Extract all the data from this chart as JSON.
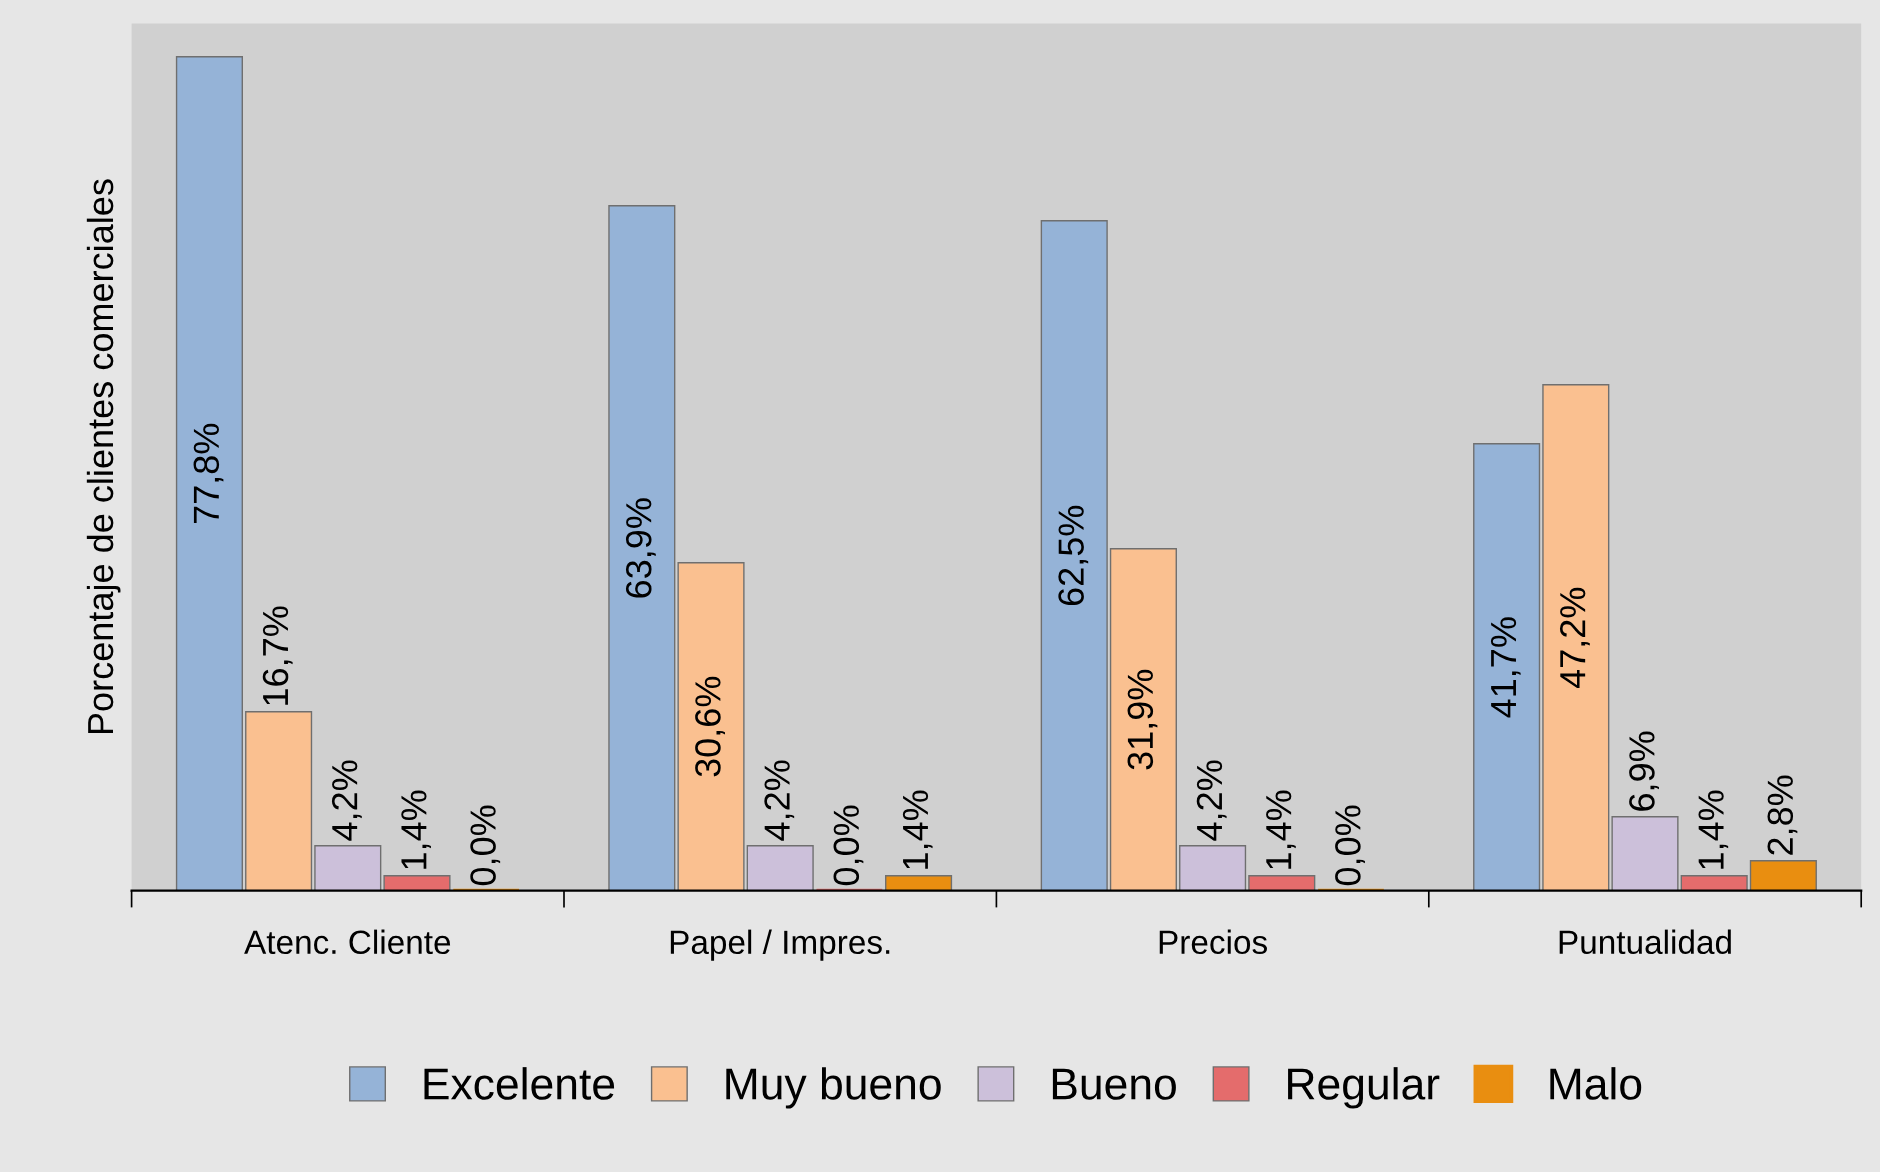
{
  "chart_data": {
    "type": "bar",
    "ylabel": "Porcentaje de clientes comerciales",
    "categories": [
      "Atenc. Cliente",
      "Papel / Impres.",
      "Precios",
      "Puntualidad"
    ],
    "series": [
      {
        "name": "Excelente",
        "color": "#95b3d7",
        "values": [
          77.8,
          63.9,
          62.5,
          41.7
        ],
        "value_labels": [
          "77,8%",
          "63,9%",
          "62,5%",
          "41,7%"
        ]
      },
      {
        "name": "Muy bueno",
        "color": "#fac090",
        "values": [
          16.7,
          30.6,
          31.9,
          47.2
        ],
        "value_labels": [
          "16,7%",
          "30,6%",
          "31,9%",
          "47,2%"
        ]
      },
      {
        "name": "Bueno",
        "color": "#ccc0da",
        "values": [
          4.2,
          4.2,
          4.2,
          6.9
        ],
        "value_labels": [
          "4,2%",
          "4,2%",
          "4,2%",
          "6,9%"
        ]
      },
      {
        "name": "Regular",
        "color": "#e46c6c",
        "values": [
          1.4,
          0.0,
          1.4,
          1.4
        ],
        "value_labels": [
          "1,4%",
          "0,0%",
          "1,4%",
          "1,4%"
        ]
      },
      {
        "name": "Malo",
        "color": "#e98e10",
        "values": [
          0.0,
          1.4,
          0.0,
          2.8
        ],
        "value_labels": [
          "0,0%",
          "1,4%",
          "0,0%",
          "2,8%"
        ]
      }
    ],
    "legend": "bottom",
    "grid": false
  }
}
